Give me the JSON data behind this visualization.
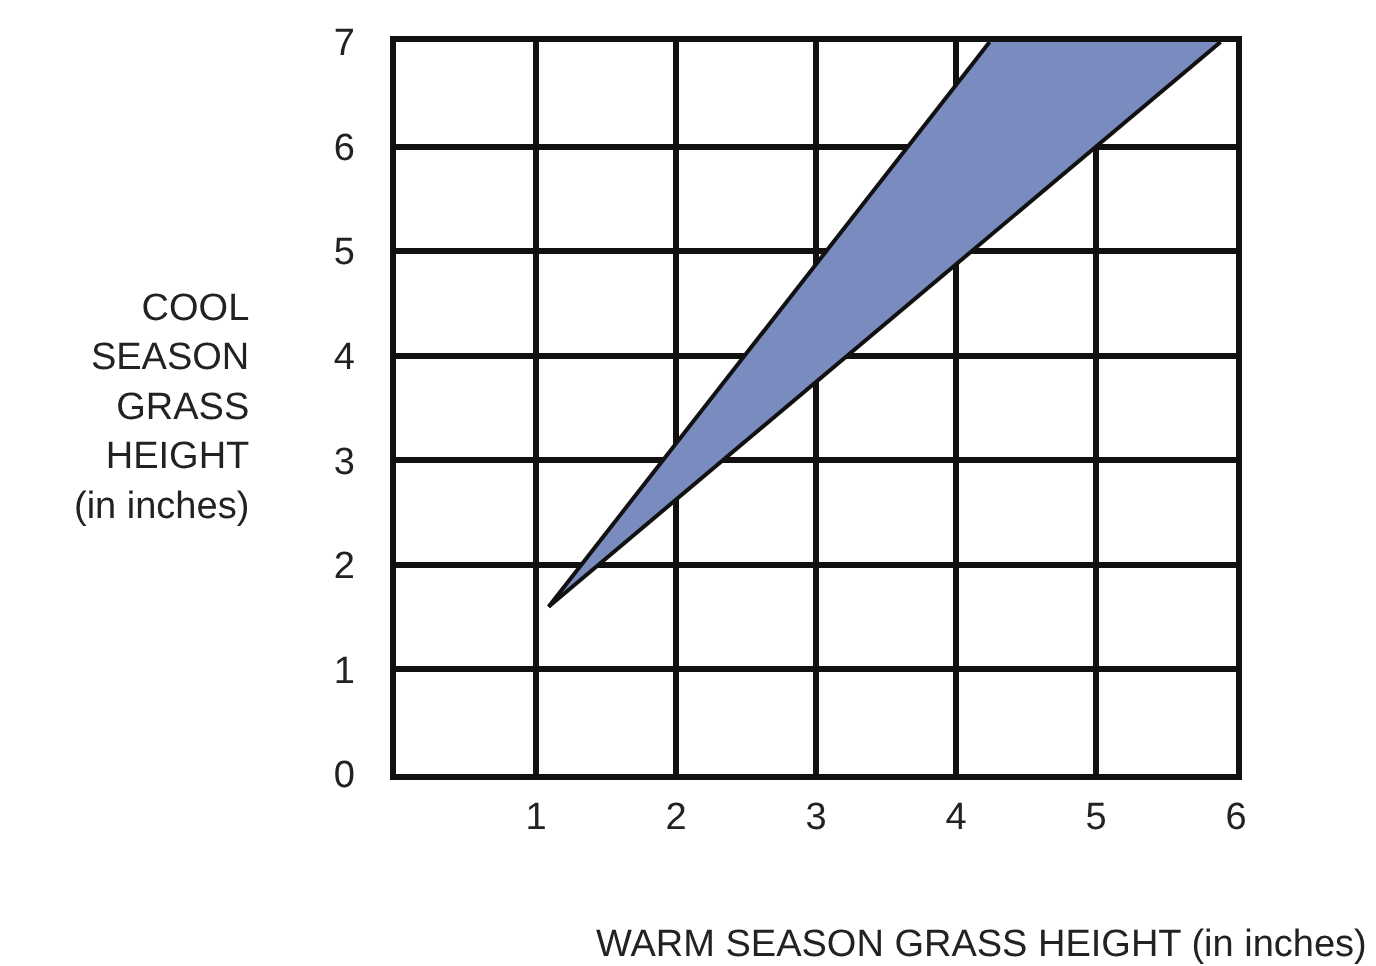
{
  "chart_data": {
    "type": "area",
    "series": [
      {
        "type": "line",
        "color": "#111111",
        "x": [
          1.09,
          4.24
        ],
        "values": [
          1.6,
          7
        ]
      },
      {
        "color": "#7a8bbf",
        "x": [
          1.09,
          5.89
        ],
        "values": [
          1.6,
          7
        ]
      }
    ],
    "xlabel": "WARM SEASON GRASS HEIGHT (in inches)",
    "ylabel": "COOL\nSEASON\nGRASS\nHEIGHT\n(in inches)",
    "xlim": [
      0,
      6
    ],
    "ylim": [
      0,
      7
    ],
    "xticks": [
      {
        "value": 0,
        "label": null
      },
      1,
      2,
      3,
      4,
      5,
      6
    ],
    "yticks": [
      0,
      1,
      2,
      3,
      4,
      5,
      6,
      7
    ],
    "grid": true
  }
}
